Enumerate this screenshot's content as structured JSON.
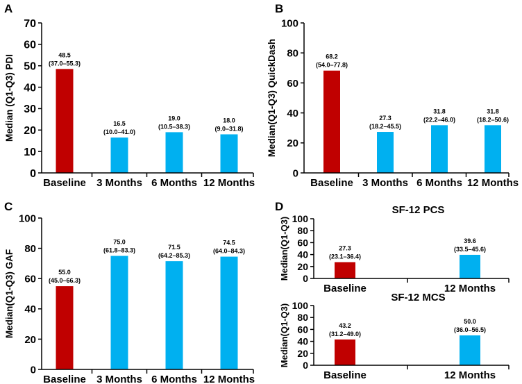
{
  "colors": {
    "baseline": "#c00000",
    "followup": "#00b0f0",
    "axis": "#000000",
    "text": "#000000"
  },
  "chart_data": [
    {
      "panel": "A",
      "type": "bar",
      "title": "",
      "ylabel": "Median (Q1-Q3) PDI",
      "xlabel": "",
      "ylim": [
        0,
        70
      ],
      "yticks": [
        0,
        10,
        20,
        30,
        40,
        50,
        60,
        70
      ],
      "grid": false,
      "categories": [
        "Baseline",
        "3 Months",
        "6 Months",
        "12 Months"
      ],
      "values": [
        48.5,
        16.5,
        19.0,
        18.0
      ],
      "labels": [
        "48.5",
        "16.5",
        "19.0",
        "18.0"
      ],
      "ranges": [
        "(37.0–55.3)",
        "(10.0–41.0)",
        "(10.5–38.3)",
        "(9.0–31.8)"
      ]
    },
    {
      "panel": "B",
      "type": "bar",
      "title": "",
      "ylabel": "Median(Q1-Q3) QuickDash",
      "xlabel": "",
      "ylim": [
        0,
        100
      ],
      "yticks": [
        0,
        20,
        40,
        60,
        80,
        100
      ],
      "grid": false,
      "categories": [
        "Baseline",
        "3 Months",
        "6 Months",
        "12 Months"
      ],
      "values": [
        68.2,
        27.3,
        31.8,
        31.8
      ],
      "labels": [
        "68.2",
        "27.3",
        "31.8",
        "31.8"
      ],
      "ranges": [
        "(54.0–77.8)",
        "(18.2–45.5)",
        "(22.2–46.0)",
        "(18.2–50.6)"
      ]
    },
    {
      "panel": "C",
      "type": "bar",
      "title": "",
      "ylabel": "Median(Q1-Q3) GAF",
      "xlabel": "",
      "ylim": [
        0,
        100
      ],
      "yticks": [
        0,
        20,
        40,
        60,
        80,
        100
      ],
      "grid": false,
      "categories": [
        "Baseline",
        "3 Months",
        "6 Months",
        "12 Months"
      ],
      "values": [
        55.0,
        75.0,
        71.5,
        74.5
      ],
      "labels": [
        "55.0",
        "75.0",
        "71.5",
        "74.5"
      ],
      "ranges": [
        "(45.0–66.3)",
        "(61.8–83.3)",
        "(64.2–85.3)",
        "(64.0–84.3)"
      ]
    },
    {
      "panel": "D",
      "type": "bar",
      "title": "SF-12 PCS",
      "ylabel": "Median(Q1-Q3)",
      "xlabel": "",
      "ylim": [
        0,
        100
      ],
      "yticks": [
        0,
        20,
        40,
        60,
        80,
        100
      ],
      "grid": false,
      "categories": [
        "Baseline",
        "12 Months"
      ],
      "values": [
        27.3,
        39.6
      ],
      "labels": [
        "27.3",
        "39.6"
      ],
      "ranges": [
        "(23.1–36.4)",
        "(33.5–45.6)"
      ]
    },
    {
      "panel": "",
      "type": "bar",
      "title": "SF-12 MCS",
      "ylabel": "Median(Q1-Q3)",
      "xlabel": "",
      "ylim": [
        0,
        100
      ],
      "yticks": [
        0,
        20,
        40,
        60,
        80,
        100
      ],
      "grid": false,
      "categories": [
        "Baseline",
        "12 Months"
      ],
      "values": [
        43.2,
        50.0
      ],
      "labels": [
        "43.2",
        "50.0"
      ],
      "ranges": [
        "(31.2–49.0)",
        "(36.0–56.5)"
      ]
    }
  ]
}
